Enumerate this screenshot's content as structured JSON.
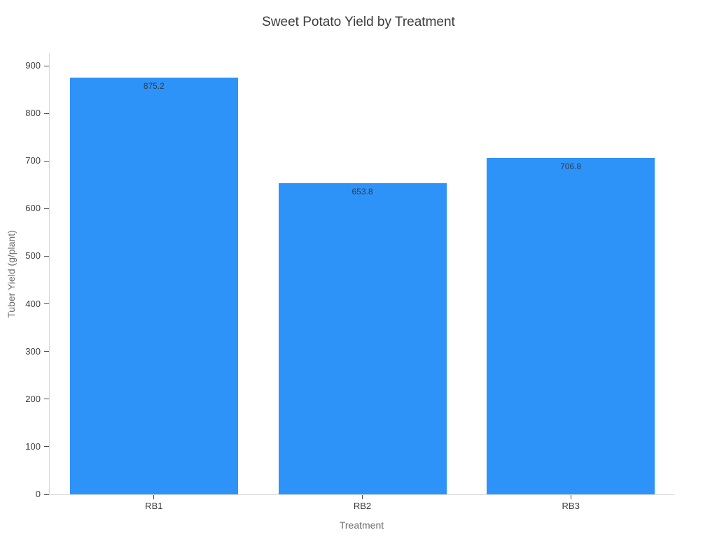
{
  "title": "Sweet Potato Yield by Treatment",
  "colors": {
    "background": "#ffffff",
    "bar": "#2e93f8",
    "axis_line": "#d9d9d9",
    "tick_mark": "#4a4a4a",
    "tick_label": "#3b3b3b",
    "axis_title": "#6d6d6d",
    "chart_title": "#3b3b3b",
    "value_label": "#2c3e50"
  },
  "chart_data": {
    "type": "bar",
    "title": "Sweet Potato Yield by Treatment",
    "xlabel": "Treatment",
    "ylabel": "Tuber Yield (g/plant)",
    "categories": [
      "RB1",
      "RB2",
      "RB3"
    ],
    "values": [
      875.2,
      653.8,
      706.8
    ],
    "value_labels": [
      "875.2",
      "653.8",
      "706.8"
    ],
    "yticks": [
      0,
      100,
      200,
      300,
      400,
      500,
      600,
      700,
      800,
      900
    ],
    "ylim": [
      0,
      928
    ],
    "grid": false,
    "legend": "none",
    "bar_color": "#2e93f8"
  }
}
